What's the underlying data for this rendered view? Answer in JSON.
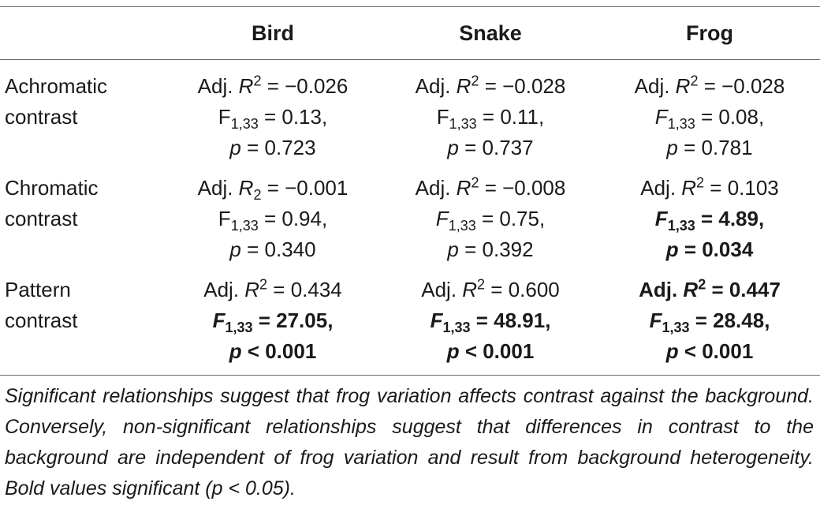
{
  "table": {
    "headers": [
      "",
      "Bird",
      "Snake",
      "Frog"
    ],
    "rows": [
      {
        "label": [
          "Achromatic",
          "contrast"
        ],
        "cells": [
          {
            "lines": [
              {
                "pre": "Adj. ",
                "var": "R",
                "sub": "",
                "sup": "2",
                "post": " = −0.026",
                "sig": false
              },
              {
                "pre": "",
                "var": "",
                "plain": "F",
                "sub": "1,33",
                "sup": "",
                "post": " = 0.13,",
                "sig": false
              },
              {
                "pre": "",
                "var": "p",
                "sub": "",
                "sup": "",
                "post": " = 0.723",
                "sig": false
              }
            ]
          },
          {
            "lines": [
              {
                "pre": "Adj. ",
                "var": "R",
                "sub": "",
                "sup": "2",
                "post": " = −0.028",
                "sig": false
              },
              {
                "pre": "",
                "var": "",
                "plain": "F",
                "sub": "1,33",
                "sup": "",
                "post": " = 0.11,",
                "sig": false
              },
              {
                "pre": "",
                "var": "p",
                "sub": "",
                "sup": "",
                "post": " = 0.737",
                "sig": false
              }
            ]
          },
          {
            "lines": [
              {
                "pre": "Adj. ",
                "var": "R",
                "sub": "",
                "sup": "2",
                "post": " = −0.028",
                "sig": false
              },
              {
                "pre": "",
                "var": "F",
                "sub": "1,33",
                "sup": "",
                "post": " = 0.08,",
                "sig": false
              },
              {
                "pre": "",
                "var": "p",
                "sub": "",
                "sup": "",
                "post": " = 0.781",
                "sig": false
              }
            ]
          }
        ]
      },
      {
        "label": [
          "Chromatic",
          "contrast"
        ],
        "cells": [
          {
            "lines": [
              {
                "pre": "Adj. ",
                "var": "R",
                "sub": "2",
                "sup": "",
                "post": " = −0.001",
                "sig": false
              },
              {
                "pre": "",
                "var": "",
                "plain": "F",
                "sub": "1,33",
                "sup": "",
                "post": " = 0.94,",
                "sig": false
              },
              {
                "pre": "",
                "var": "p",
                "sub": "",
                "sup": "",
                "post": " = 0.340",
                "sig": false
              }
            ]
          },
          {
            "lines": [
              {
                "pre": "Adj. ",
                "var": "R",
                "sub": "",
                "sup": "2",
                "post": " = −0.008",
                "sig": false
              },
              {
                "pre": "",
                "var": "F",
                "sub": "1,33",
                "sup": "",
                "post": " = 0.75,",
                "sig": false
              },
              {
                "pre": "",
                "var": "p",
                "sub": "",
                "sup": "",
                "post": " = 0.392",
                "sig": false
              }
            ]
          },
          {
            "lines": [
              {
                "pre": "Adj. ",
                "var": "R",
                "sub": "",
                "sup": "2",
                "post": " = 0.103",
                "sig": false
              },
              {
                "pre": "",
                "var": "F",
                "sub": "1,33",
                "sup": "",
                "post": " = 4.89,",
                "sig": true
              },
              {
                "pre": "",
                "var": "p",
                "sub": "",
                "sup": "",
                "post": " = 0.034",
                "sig": true
              }
            ]
          }
        ]
      },
      {
        "label": [
          "Pattern",
          "contrast"
        ],
        "cells": [
          {
            "lines": [
              {
                "pre": "Adj. ",
                "var": "R",
                "sub": "",
                "sup": "2",
                "post": " = 0.434",
                "sig": false
              },
              {
                "pre": "",
                "var": "F",
                "sub": "1,33",
                "sup": "",
                "post": " = 27.05,",
                "sig": true
              },
              {
                "pre": "",
                "var": "p",
                "sub": "",
                "sup": "",
                "post": " < 0.001",
                "sig": true
              }
            ]
          },
          {
            "lines": [
              {
                "pre": "Adj. ",
                "var": "R",
                "sub": "",
                "sup": "2",
                "post": " = 0.600",
                "sig": false
              },
              {
                "pre": "",
                "var": "F",
                "sub": "1,33",
                "sup": "",
                "post": " = 48.91,",
                "sig": true
              },
              {
                "pre": "",
                "var": "p",
                "sub": "",
                "sup": "",
                "post": " < 0.001",
                "sig": true
              }
            ]
          },
          {
            "lines": [
              {
                "pre": "Adj. ",
                "var": "R",
                "sub": "",
                "sup": "2",
                "post": " = 0.447",
                "sig": true
              },
              {
                "pre": "",
                "var": "F",
                "sub": "1,33",
                "sup": "",
                "post": " = 28.48,",
                "sig": true
              },
              {
                "pre": "",
                "var": "p",
                "sub": "",
                "sup": "",
                "post": " < 0.001",
                "sig": true
              }
            ]
          }
        ]
      }
    ]
  },
  "footnote": "Significant relationships suggest that frog variation affects contrast against the background. Conversely, non-significant relationships suggest that differences in contrast to the background are independent of frog variation and result from background heterogeneity. Bold values significant (p < 0.05)."
}
